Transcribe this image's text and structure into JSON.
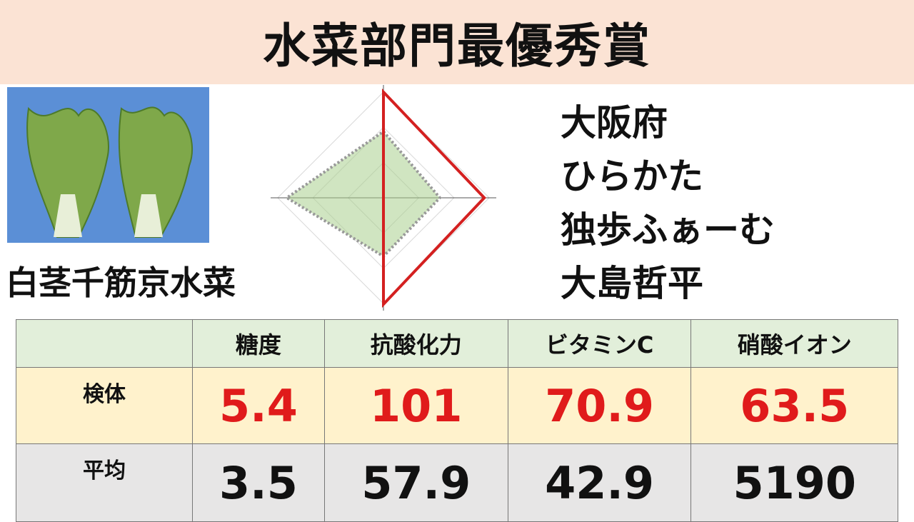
{
  "header": {
    "title": "水菜部門最優秀賞"
  },
  "product": {
    "name": "白茎千筋京水菜"
  },
  "producer": {
    "lines": [
      "大阪府",
      "ひらかた",
      "独歩ふぁーむ",
      "大島哲平"
    ]
  },
  "radar": {
    "type": "radar",
    "rlim": [
      0,
      160
    ],
    "rticks": [
      50,
      100,
      150
    ],
    "series": [
      {
        "color": "#d42020",
        "values": [
          150,
          143,
          151,
          0
        ]
      },
      {
        "color": "#a9d08e",
        "values": [
          94,
          80,
          83,
          137
        ]
      }
    ]
  },
  "table": {
    "header": [
      "",
      "糖度",
      "抗酸化力",
      "ビタミンC",
      "硝酸イオン"
    ],
    "rows": [
      [
        "検体",
        5.4,
        101,
        70.9,
        63.5
      ],
      [
        "平均",
        3.5,
        57.9,
        42.9,
        5190
      ]
    ]
  }
}
